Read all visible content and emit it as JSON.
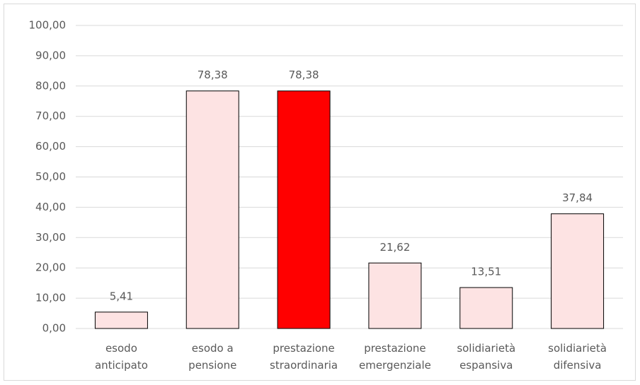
{
  "chart_data": {
    "type": "bar",
    "categories": [
      "esodo anticipato",
      "esodo a pensione",
      "prestazione straordinaria",
      "prestazione emergenziale",
      "solidiarietà espansiva",
      "solidiarietà difensiva"
    ],
    "values": [
      5.41,
      78.38,
      78.38,
      21.62,
      13.51,
      37.84
    ],
    "value_labels": [
      "5,41",
      "78,38",
      "78,38",
      "21,62",
      "13,51",
      "37,84"
    ],
    "colors": [
      "#fde3e3",
      "#fde3e3",
      "#ff0000",
      "#fde3e3",
      "#fde3e3",
      "#fde3e3"
    ],
    "ylim": [
      0,
      100
    ],
    "yticks": [
      {
        "value": 0,
        "label": "0,00"
      },
      {
        "value": 10,
        "label": "10,00"
      },
      {
        "value": 20,
        "label": "20,00"
      },
      {
        "value": 30,
        "label": "30,00"
      },
      {
        "value": 40,
        "label": "40,00"
      },
      {
        "value": 50,
        "label": "50,00"
      },
      {
        "value": 60,
        "label": "60,00"
      },
      {
        "value": 70,
        "label": "70,00"
      },
      {
        "value": 80,
        "label": "80,00"
      },
      {
        "value": 90,
        "label": "90,00"
      },
      {
        "value": 100,
        "label": "100,00"
      }
    ],
    "grid": true
  }
}
